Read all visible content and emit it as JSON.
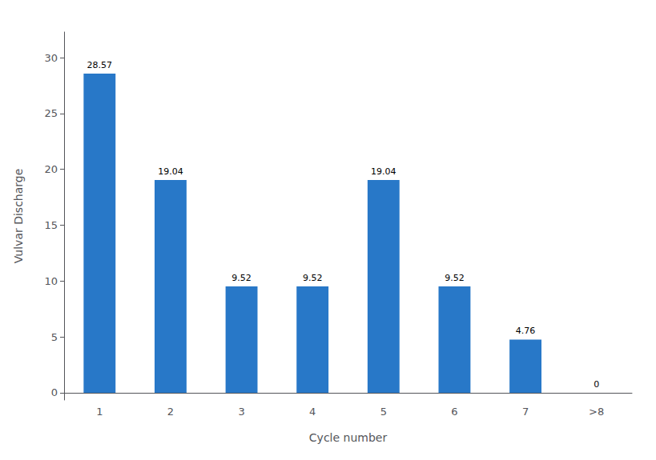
{
  "chart_data": {
    "type": "bar",
    "categories": [
      "1",
      "2",
      "3",
      "4",
      "5",
      "6",
      "7",
      ">8"
    ],
    "values": [
      28.57,
      19.04,
      9.52,
      9.52,
      19.04,
      9.52,
      4.76,
      0
    ],
    "color": "#2878C8",
    "xlabel": "Cycle number",
    "ylabel": "Vulvar Discharge",
    "ylim": [
      -0.65,
      32.3
    ],
    "yticks": [
      0,
      5,
      10,
      15,
      20,
      25,
      30
    ],
    "grid": false,
    "data_labels": true
  }
}
